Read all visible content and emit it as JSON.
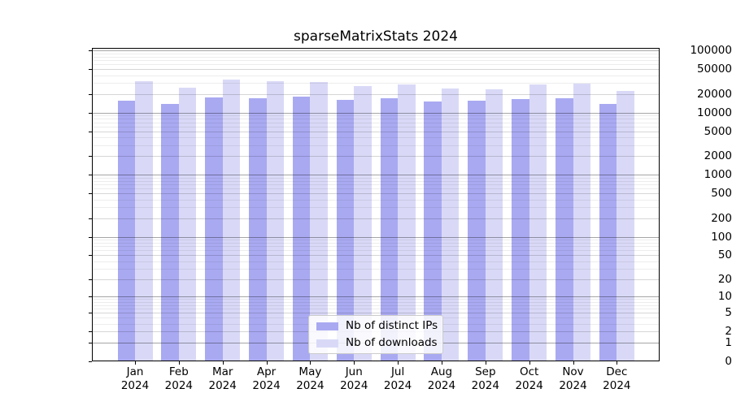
{
  "chart_data": {
    "type": "bar",
    "title": "sparseMatrixStats 2024",
    "year": "2024",
    "categories": [
      "Jan",
      "Feb",
      "Mar",
      "Apr",
      "May",
      "Jun",
      "Jul",
      "Aug",
      "Sep",
      "Oct",
      "Nov",
      "Dec"
    ],
    "series": [
      {
        "name": "Nb of distinct IPs",
        "color": "#a9a9f2",
        "values": [
          15600,
          13900,
          17600,
          16900,
          18300,
          16000,
          17200,
          15100,
          15400,
          16700,
          17000,
          14000
        ]
      },
      {
        "name": "Nb of downloads",
        "color": "#d9d9f7",
        "values": [
          32100,
          25500,
          34400,
          32100,
          30800,
          27000,
          28700,
          24300,
          24000,
          28200,
          29000,
          22100
        ]
      }
    ],
    "yticks": [
      0,
      1,
      2,
      5,
      10,
      20,
      50,
      100,
      200,
      500,
      1000,
      2000,
      5000,
      10000,
      20000,
      50000,
      100000
    ],
    "scale": "log10(v+1)",
    "ylim": [
      0,
      110000
    ],
    "xlabel": "",
    "ylabel": "",
    "grid": "horizontal",
    "legend_position": "bottom-center",
    "colors": {
      "background": "#ffffff",
      "axis": "#000000",
      "grid_major": "rgba(0,0,0,0.35)",
      "grid_mid": "rgba(0,0,0,0.16)",
      "grid_minor": "rgba(0,0,0,0.07)"
    }
  }
}
